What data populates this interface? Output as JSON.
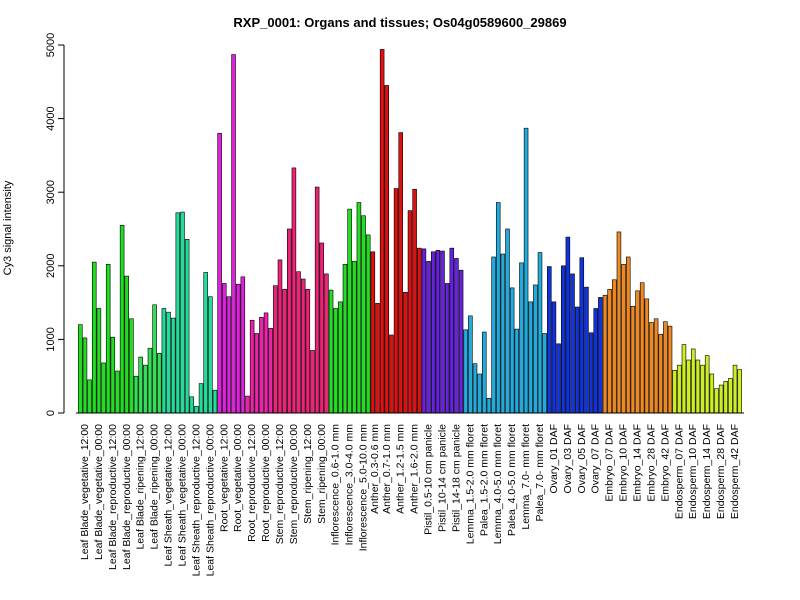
{
  "chart_data": {
    "type": "bar",
    "title": "RXP_0001: Organs and tissues; Os04g0589600_29869",
    "ylabel": "Cy3 signal intensity",
    "xlabel": "",
    "ylim": [
      0,
      5000
    ],
    "yticks": [
      0,
      1000,
      2000,
      3000,
      4000,
      5000
    ],
    "grid": false,
    "legend": "none",
    "groups": [
      {
        "label": "Leaf Blade_vegetative_12:00",
        "color": "#22dd22",
        "values": [
          1200,
          1020,
          450
        ]
      },
      {
        "label": "Leaf Blade_vegetative_00:00",
        "color": "#22dd22",
        "values": [
          2050,
          1420,
          680
        ]
      },
      {
        "label": "Leaf Blade_reproductive_12:00",
        "color": "#22dd22",
        "values": [
          2020,
          1030,
          570
        ]
      },
      {
        "label": "Leaf Blade_reproductive_00:00",
        "color": "#22dd22",
        "values": [
          2550,
          1860,
          1280
        ]
      },
      {
        "label": "Leaf Blade_ripening_12:00",
        "color": "#33e055",
        "values": [
          500,
          760,
          650
        ]
      },
      {
        "label": "Leaf Blade_ripening_00:00",
        "color": "#33e055",
        "values": [
          880,
          1470,
          810
        ]
      },
      {
        "label": "Leaf Sheath_vegetative_12:00",
        "color": "#22dd99",
        "values": [
          1420,
          1370,
          1290
        ]
      },
      {
        "label": "Leaf Sheath_vegetative_00:00",
        "color": "#22dd99",
        "values": [
          2720,
          2730,
          2360
        ]
      },
      {
        "label": "Leaf Sheath_reproductive_12:00",
        "color": "#22dd99",
        "values": [
          220,
          90,
          400
        ]
      },
      {
        "label": "Leaf Sheath_reproductive_00:00",
        "color": "#22dd99",
        "values": [
          1910,
          1580,
          310
        ]
      },
      {
        "label": "Root_vegetative_12:00",
        "color": "#dd22dd",
        "values": [
          3800,
          1760,
          1580
        ]
      },
      {
        "label": "Root_vegetative_00:00",
        "color": "#dd22dd",
        "values": [
          4870,
          1750,
          1850
        ]
      },
      {
        "label": "Root_reproductive_12:00",
        "color": "#ee22aa",
        "values": [
          230,
          1260,
          1080
        ]
      },
      {
        "label": "Root_reproductive_00:00",
        "color": "#ee22aa",
        "values": [
          1300,
          1360,
          1150
        ]
      },
      {
        "label": "Stem_reproductive_12:00",
        "color": "#ee2277",
        "values": [
          1730,
          2080,
          1680
        ]
      },
      {
        "label": "Stem_reproductive_00:00",
        "color": "#ee2277",
        "values": [
          2500,
          3330,
          1920
        ]
      },
      {
        "label": "Stem_ripening_12:00",
        "color": "#ee2277",
        "values": [
          1820,
          1680,
          850
        ]
      },
      {
        "label": "Stem_ripening_00:00",
        "color": "#ee2277",
        "values": [
          3070,
          2310,
          1890
        ]
      },
      {
        "label": "Inflorescence_0.6-1.0 mm",
        "color": "#22dd22",
        "values": [
          1670,
          1420,
          1510
        ]
      },
      {
        "label": "Inflorescence_3.0-4.0 mm",
        "color": "#22dd22",
        "values": [
          2020,
          2770,
          2060
        ]
      },
      {
        "label": "Inflorescence_5.0-10.0 mm",
        "color": "#22dd22",
        "values": [
          2860,
          2680,
          2420
        ]
      },
      {
        "label": "Anther_0.3-0.6 mm",
        "color": "#dd1111",
        "values": [
          2190,
          1490
        ]
      },
      {
        "label": "Anther_0.7-1.0 mm",
        "color": "#dd1111",
        "values": [
          4940,
          4450,
          1060
        ]
      },
      {
        "label": "Anther_1.2-1.5 mm",
        "color": "#dd1111",
        "values": [
          3050,
          3810,
          1640
        ]
      },
      {
        "label": "Anther_1.6-2.0 mm",
        "color": "#dd1111",
        "values": [
          2750,
          3040,
          2240
        ]
      },
      {
        "label": "Pistil_0.5-10 cm panicle",
        "color": "#6622dd",
        "values": [
          2230,
          2060,
          2190
        ]
      },
      {
        "label": "Pistil_10-14 cm panicle",
        "color": "#6622dd",
        "values": [
          2210,
          2200,
          1760
        ]
      },
      {
        "label": "Pistil_14-18 cm panicle",
        "color": "#6622dd",
        "values": [
          2240,
          2100,
          1940
        ]
      },
      {
        "label": "Lemma_1.5-2.0 mm floret",
        "color": "#22aadd",
        "values": [
          1130,
          1320,
          670
        ]
      },
      {
        "label": "Palea_1.5-2.0 mm floret",
        "color": "#22aadd",
        "values": [
          530,
          1100,
          200
        ]
      },
      {
        "label": "Lemma_4.0-5.0 mm floret",
        "color": "#22aadd",
        "values": [
          2120,
          2860,
          2160
        ]
      },
      {
        "label": "Palea_4.0-5.0 mm floret",
        "color": "#22aadd",
        "values": [
          2500,
          1700,
          1140
        ]
      },
      {
        "label": "Lemma_7.0- mm floret",
        "color": "#22aadd",
        "values": [
          2040,
          3870,
          1510
        ]
      },
      {
        "label": "Palea_7.0- mm floret",
        "color": "#22aadd",
        "values": [
          1740,
          2180,
          1080
        ]
      },
      {
        "label": "Ovary_01 DAF",
        "color": "#1133dd",
        "values": [
          1990,
          1510,
          940
        ]
      },
      {
        "label": "Ovary_03 DAF",
        "color": "#1133dd",
        "values": [
          2000,
          2390,
          1890
        ]
      },
      {
        "label": "Ovary_05 DAF",
        "color": "#1133dd",
        "values": [
          1440,
          2110,
          1710
        ]
      },
      {
        "label": "Ovary_07 DAF",
        "color": "#1133dd",
        "values": [
          1090,
          1420,
          1570
        ]
      },
      {
        "label": "Embryo_07 DAF",
        "color": "#ee8822",
        "values": [
          1600,
          1680,
          1810
        ]
      },
      {
        "label": "Embryo_10 DAF",
        "color": "#ee8822",
        "values": [
          2460,
          2020,
          2120
        ]
      },
      {
        "label": "Embryo_14 DAF",
        "color": "#ee8822",
        "values": [
          1450,
          1660,
          1770
        ]
      },
      {
        "label": "Embryo_28 DAF",
        "color": "#ee8822",
        "values": [
          1550,
          1230,
          1280
        ]
      },
      {
        "label": "Embryo_42 DAF",
        "color": "#ee8822",
        "values": [
          1070,
          1240,
          1180
        ]
      },
      {
        "label": "Endosperm_07 DAF",
        "color": "#ccee22",
        "values": [
          580,
          650,
          930
        ]
      },
      {
        "label": "Endosperm_10 DAF",
        "color": "#ccee22",
        "values": [
          720,
          870,
          720
        ]
      },
      {
        "label": "Endosperm_14 DAF",
        "color": "#ccee22",
        "values": [
          650,
          780,
          530
        ]
      },
      {
        "label": "Endosperm_28 DAF",
        "color": "#ccee22",
        "values": [
          330,
          380,
          430
        ]
      },
      {
        "label": "Endosperm_42 DAF",
        "color": "#ccee22",
        "values": [
          470,
          650,
          590
        ]
      }
    ]
  }
}
